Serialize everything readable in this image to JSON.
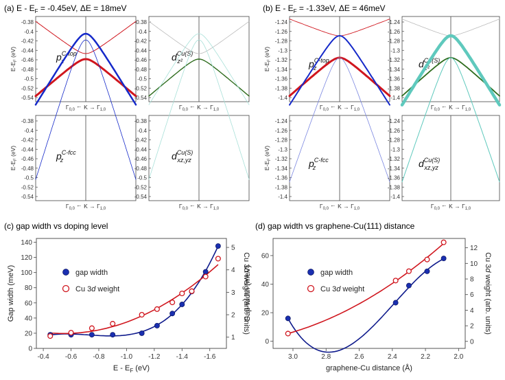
{
  "panel_titles": {
    "a": "(a) E - E",
    "a_rest": " = -0.45eV, ΔE = 18meV",
    "b": "(b) E - E",
    "b_rest": " = -1.33eV, ΔE = 46meV",
    "c": "(c) gap width vs doping level",
    "d": "(d) gap width vs graphene-Cu(111) distance"
  },
  "band_axis": {
    "ylabel": "E-E",
    "ylabel_unit": " (eV)",
    "xlabel_left": "Γ",
    "xlabel_mid": "K",
    "xlabel_sub0": "0,0",
    "xlabel_sub1": "1,0",
    "a_ticks": [
      "-0.38",
      "-0.4",
      "-0.42",
      "-0.44",
      "-0.46",
      "-0.48",
      "-0.5",
      "-0.52",
      "-0.54"
    ],
    "b_ticks": [
      "-1.24",
      "-1.26",
      "-1.28",
      "-1.3",
      "-1.32",
      "-1.34",
      "-1.36",
      "-1.38",
      "-1.4"
    ]
  },
  "orbital_labels": {
    "pz_ctop_base": "p",
    "pz_ctop_sub": "z",
    "pz_ctop_sup": "C-top",
    "pz_cfcc_base": "p",
    "pz_cfcc_sub": "z",
    "pz_cfcc_sup": "C-fcc",
    "dz2_base": "d",
    "dz2_sub": "z²",
    "dz2_sup": "Cu(S)",
    "dxz_base": "d",
    "dxz_sub": "xz,yz",
    "dxz_sup": "Cu(S)"
  },
  "colors": {
    "red": "#d0161e",
    "green": "#2e6b1c",
    "blue": "#1529c9",
    "teal": "#5fc9bd",
    "gray": "#bbbbbb"
  },
  "chart_data": [
    {
      "type": "scatter",
      "title": "(c) gap width vs doping level",
      "xlabel": "E - E_F (eV)",
      "ylabel": "Gap width (meV)",
      "ylabel_right": "Cu 3d weight (arb. units)",
      "xlim": [
        -0.35,
        -1.72
      ],
      "ylim": [
        0,
        145
      ],
      "ylim_right": [
        0.5,
        5.4
      ],
      "xticks": [
        "-0.4",
        "-0.6",
        "-0.8",
        "-1.0",
        "-1.2",
        "-1.4",
        "-1.6"
      ],
      "yticks": [
        "0",
        "20",
        "40",
        "60",
        "80",
        "100",
        "120",
        "140"
      ],
      "yticks_right": [
        "1",
        "2",
        "3",
        "4",
        "5"
      ],
      "legend": [
        "gap width",
        "Cu 3d weight"
      ],
      "series": [
        {
          "name": "gap width",
          "axis": "left",
          "x": [
            -0.45,
            -0.6,
            -0.75,
            -0.9,
            -1.11,
            -1.22,
            -1.33,
            -1.4,
            -1.47,
            -1.57,
            -1.66
          ],
          "y": [
            18,
            18,
            18,
            18,
            20,
            30,
            46,
            58,
            75,
            101,
            135
          ]
        },
        {
          "name": "Cu 3d weight",
          "axis": "right",
          "x": [
            -0.45,
            -0.6,
            -0.75,
            -0.9,
            -1.11,
            -1.22,
            -1.33,
            -1.4,
            -1.47,
            -1.57,
            -1.66
          ],
          "y": [
            1.05,
            1.2,
            1.4,
            1.6,
            2.0,
            2.25,
            2.55,
            2.95,
            3.05,
            3.7,
            4.5
          ]
        }
      ]
    },
    {
      "type": "scatter",
      "title": "(d) gap width vs graphene-Cu(111) distance",
      "xlabel": "graphene-Cu distance (Å)",
      "ylabel": "Gap width (meV)",
      "ylabel_right": "Cu 3d weight (arb. units)",
      "xlim": [
        3.12,
        1.96
      ],
      "ylim": [
        -5,
        72
      ],
      "ylim_right": [
        -0.9,
        13.2
      ],
      "xticks": [
        "3.0",
        "2.8",
        "2.6",
        "2.4",
        "2.2",
        "2.0"
      ],
      "yticks": [
        "0",
        "20",
        "40",
        "60"
      ],
      "yticks_right": [
        "0",
        "2",
        "4",
        "6",
        "8",
        "10",
        "12"
      ],
      "legend": [
        "gap width",
        "Cu 3d weight"
      ],
      "series": [
        {
          "name": "gap width",
          "axis": "left",
          "x": [
            3.03,
            2.38,
            2.3,
            2.19,
            2.09
          ],
          "y": [
            16,
            27,
            39,
            49,
            58
          ]
        },
        {
          "name": "Cu 3d weight",
          "axis": "right",
          "x": [
            3.03,
            2.38,
            2.3,
            2.19,
            2.09
          ],
          "y": [
            1.0,
            7.8,
            9.0,
            10.5,
            12.7
          ]
        }
      ]
    }
  ]
}
